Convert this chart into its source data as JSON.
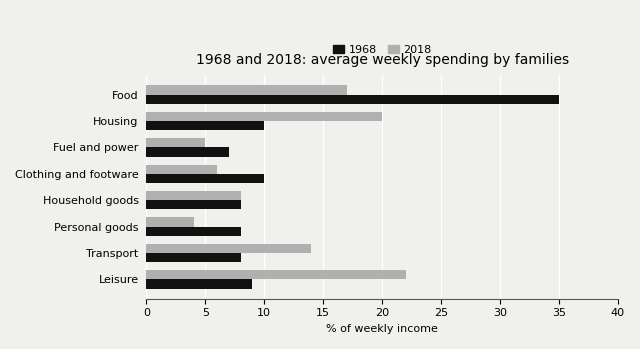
{
  "title": "1968 and 2018: average weekly spending by families",
  "categories": [
    "Food",
    "Housing",
    "Fuel and power",
    "Clothing and footware",
    "Household goods",
    "Personal goods",
    "Transport",
    "Leisure"
  ],
  "values_1968": [
    35,
    10,
    7,
    10,
    8,
    8,
    8,
    9
  ],
  "values_2018": [
    17,
    20,
    5,
    6,
    8,
    4,
    14,
    22
  ],
  "color_1968": "#111111",
  "color_2018": "#b0b0b0",
  "xlabel": "% of weekly income",
  "xlim": [
    0,
    40
  ],
  "xticks": [
    0,
    5,
    10,
    15,
    20,
    25,
    30,
    35,
    40
  ],
  "legend_labels": [
    "1968",
    "2018"
  ],
  "bar_height": 0.35,
  "background_color": "#f0f0ec",
  "grid_color": "#ffffff",
  "title_fontsize": 10,
  "label_fontsize": 8,
  "tick_fontsize": 8
}
